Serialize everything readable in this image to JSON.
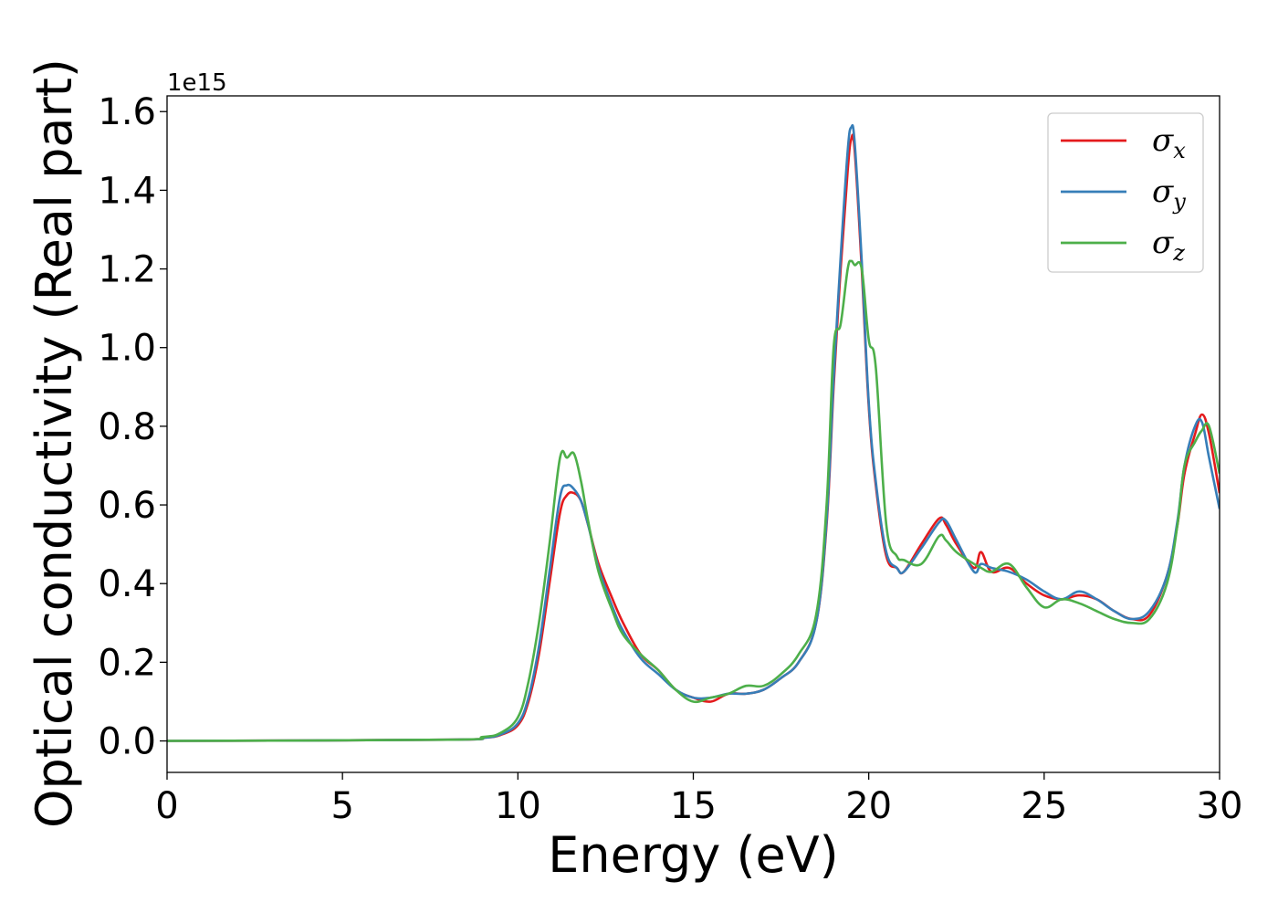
{
  "chart_data": {
    "type": "line",
    "title": "",
    "xlabel": "Energy (eV)",
    "ylabel": "Optical conductivity (Real part)",
    "y_offset_label": "1e15",
    "y_scale_factor": 1000000000000000.0,
    "xlim": [
      0,
      30
    ],
    "ylim": [
      -0.08,
      1.64
    ],
    "x_ticks": [
      0,
      5,
      10,
      15,
      20,
      25,
      30
    ],
    "x_tick_labels": [
      "0",
      "5",
      "10",
      "15",
      "20",
      "25",
      "30"
    ],
    "y_ticks": [
      0.0,
      0.2,
      0.4,
      0.6,
      0.8,
      1.0,
      1.2,
      1.4,
      1.6
    ],
    "y_tick_labels": [
      "0.0",
      "0.2",
      "0.4",
      "0.6",
      "0.8",
      "1.0",
      "1.2",
      "1.4",
      "1.6"
    ],
    "grid": false,
    "legend_position": "top-right",
    "series": [
      {
        "name": "σx",
        "legend_symbol": "σ",
        "legend_sub": "x",
        "color": "#e41a1c",
        "x": [
          0,
          8,
          9,
          9.5,
          10,
          10.3,
          10.6,
          10.9,
          11.2,
          11.4,
          11.6,
          11.8,
          12,
          12.3,
          12.7,
          13,
          13.5,
          14,
          14.5,
          15,
          15.5,
          16,
          16.5,
          17,
          17.5,
          18,
          18.5,
          18.8,
          19,
          19.2,
          19.4,
          19.5,
          19.6,
          19.8,
          20,
          20.2,
          20.5,
          20.8,
          21,
          21.5,
          22,
          22.2,
          22.5,
          23,
          23.2,
          23.5,
          24,
          24.5,
          25,
          25.5,
          26,
          26.5,
          27,
          27.5,
          28,
          28.5,
          28.8,
          29,
          29.3,
          29.5,
          29.7,
          30
        ],
        "y": [
          0,
          0.003,
          0.008,
          0.015,
          0.04,
          0.1,
          0.22,
          0.4,
          0.58,
          0.625,
          0.63,
          0.61,
          0.55,
          0.45,
          0.36,
          0.3,
          0.22,
          0.18,
          0.13,
          0.11,
          0.1,
          0.12,
          0.12,
          0.13,
          0.16,
          0.2,
          0.3,
          0.55,
          0.9,
          1.2,
          1.45,
          1.53,
          1.5,
          1.2,
          0.85,
          0.65,
          0.47,
          0.44,
          0.43,
          0.5,
          0.565,
          0.55,
          0.5,
          0.44,
          0.48,
          0.43,
          0.44,
          0.4,
          0.37,
          0.36,
          0.37,
          0.36,
          0.33,
          0.31,
          0.32,
          0.42,
          0.55,
          0.68,
          0.78,
          0.83,
          0.78,
          0.63
        ]
      },
      {
        "name": "σy",
        "legend_symbol": "σ",
        "legend_sub": "y",
        "color": "#377eb8",
        "x": [
          0,
          8,
          9,
          9.5,
          10,
          10.3,
          10.6,
          10.9,
          11.2,
          11.4,
          11.6,
          11.8,
          12,
          12.3,
          12.7,
          13,
          13.5,
          14,
          14.5,
          15,
          15.5,
          16,
          16.5,
          17,
          17.5,
          18,
          18.5,
          18.8,
          19,
          19.2,
          19.4,
          19.5,
          19.6,
          19.8,
          20,
          20.2,
          20.5,
          20.8,
          21,
          21.5,
          22,
          22.2,
          22.5,
          23,
          23.2,
          23.5,
          24,
          24.5,
          25,
          25.5,
          26,
          26.5,
          27,
          27.5,
          28,
          28.5,
          28.8,
          29,
          29.3,
          29.5,
          29.7,
          30
        ],
        "y": [
          0,
          0.003,
          0.008,
          0.016,
          0.045,
          0.11,
          0.24,
          0.43,
          0.62,
          0.65,
          0.64,
          0.61,
          0.55,
          0.44,
          0.34,
          0.28,
          0.21,
          0.17,
          0.13,
          0.11,
          0.11,
          0.12,
          0.12,
          0.13,
          0.16,
          0.2,
          0.3,
          0.56,
          0.92,
          1.23,
          1.5,
          1.56,
          1.52,
          1.22,
          0.86,
          0.66,
          0.48,
          0.44,
          0.43,
          0.49,
          0.555,
          0.56,
          0.51,
          0.43,
          0.45,
          0.44,
          0.43,
          0.41,
          0.38,
          0.36,
          0.38,
          0.36,
          0.33,
          0.31,
          0.33,
          0.42,
          0.56,
          0.7,
          0.8,
          0.81,
          0.72,
          0.59
        ]
      },
      {
        "name": "σz",
        "legend_symbol": "σ",
        "legend_sub": "z",
        "color": "#4daf4a",
        "x": [
          0,
          8,
          9,
          9.5,
          10,
          10.3,
          10.6,
          10.9,
          11.2,
          11.4,
          11.6,
          11.8,
          12,
          12.3,
          12.7,
          13,
          13.5,
          14,
          14.5,
          15,
          15.5,
          16,
          16.5,
          17,
          17.5,
          18,
          18.5,
          18.8,
          19,
          19.2,
          19.4,
          19.5,
          19.6,
          19.8,
          20,
          20.2,
          20.5,
          20.8,
          21,
          21.5,
          22,
          22.2,
          22.5,
          23,
          23.2,
          23.5,
          24,
          24.5,
          25,
          25.5,
          26,
          26.5,
          27,
          27.5,
          28,
          28.5,
          28.8,
          29,
          29.3,
          29.5,
          29.7,
          30
        ],
        "y": [
          0,
          0.003,
          0.01,
          0.02,
          0.06,
          0.15,
          0.3,
          0.5,
          0.72,
          0.72,
          0.73,
          0.66,
          0.56,
          0.43,
          0.33,
          0.27,
          0.22,
          0.18,
          0.13,
          0.1,
          0.11,
          0.12,
          0.14,
          0.14,
          0.17,
          0.22,
          0.32,
          0.6,
          1.0,
          1.06,
          1.2,
          1.22,
          1.21,
          1.2,
          1.02,
          0.95,
          0.55,
          0.47,
          0.46,
          0.45,
          0.52,
          0.51,
          0.48,
          0.45,
          0.44,
          0.43,
          0.45,
          0.39,
          0.34,
          0.36,
          0.35,
          0.33,
          0.31,
          0.3,
          0.31,
          0.4,
          0.55,
          0.7,
          0.76,
          0.79,
          0.8,
          0.68
        ]
      }
    ]
  }
}
